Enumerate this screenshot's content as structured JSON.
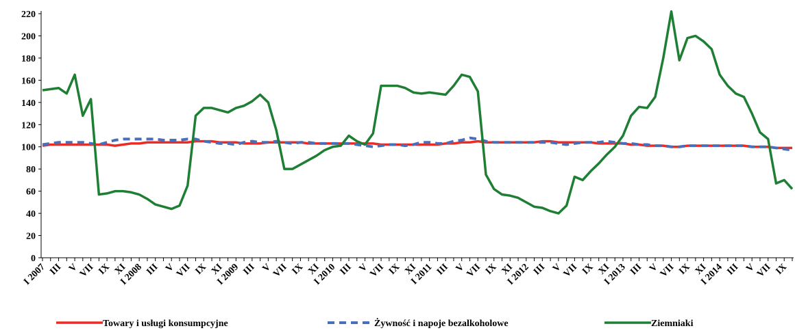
{
  "chart_data": {
    "type": "line",
    "categories": [
      "I 2007",
      null,
      "III",
      null,
      "V",
      null,
      "VII",
      null,
      "IX",
      null,
      "XI",
      null,
      "I 2008",
      null,
      "III",
      null,
      "V",
      null,
      "VII",
      null,
      "IX",
      null,
      "XI",
      null,
      "I 2009",
      null,
      "III",
      null,
      "V",
      null,
      "VII",
      null,
      "IX",
      null,
      "XI",
      null,
      "I 2010",
      null,
      "III",
      null,
      "V",
      null,
      "VII",
      null,
      "IX",
      null,
      "XI",
      null,
      "I 2011",
      null,
      "III",
      null,
      "V",
      null,
      "VII",
      null,
      "IX",
      null,
      "XI",
      null,
      "I 2012",
      null,
      "III",
      null,
      "V",
      null,
      "VII",
      null,
      "IX",
      null,
      "XI",
      null,
      "I 2013",
      null,
      "III",
      null,
      "V",
      null,
      "VII",
      null,
      "IX",
      null,
      "XI",
      null,
      "I 2014",
      null,
      "III",
      null,
      "V",
      null,
      "VII",
      null,
      "IX",
      null
    ],
    "series": [
      {
        "name": "Towary i usługi konsumpcyjne",
        "color": "#ee2a24",
        "dash": false,
        "values": [
          101,
          102,
          102,
          102,
          102,
          102,
          102,
          102,
          102,
          101,
          102,
          103,
          103,
          104,
          104,
          104,
          104,
          104,
          104,
          105,
          105,
          105,
          104,
          104,
          104,
          103,
          103,
          103,
          104,
          104,
          104,
          104,
          104,
          103,
          103,
          103,
          103,
          103,
          103,
          103,
          103,
          103,
          102,
          102,
          102,
          102,
          102,
          102,
          102,
          102,
          103,
          103,
          104,
          104,
          105,
          104,
          104,
          104,
          104,
          104,
          104,
          104,
          105,
          105,
          104,
          104,
          104,
          104,
          104,
          103,
          103,
          103,
          103,
          102,
          102,
          101,
          101,
          101,
          100,
          100,
          101,
          101,
          101,
          101,
          101,
          101,
          101,
          101,
          100,
          100,
          100,
          99,
          99,
          99
        ]
      },
      {
        "name": "Żywność i napoje bezalkoholowe",
        "color": "#4a6fba",
        "dash": true,
        "values": [
          102,
          103,
          104,
          104,
          104,
          104,
          103,
          102,
          104,
          106,
          107,
          107,
          107,
          107,
          107,
          106,
          106,
          106,
          107,
          107,
          105,
          104,
          103,
          103,
          102,
          104,
          105,
          104,
          104,
          105,
          104,
          103,
          104,
          104,
          103,
          103,
          103,
          103,
          103,
          102,
          101,
          100,
          101,
          102,
          102,
          101,
          102,
          104,
          104,
          103,
          103,
          105,
          106,
          108,
          107,
          105,
          104,
          104,
          104,
          104,
          104,
          104,
          104,
          104,
          103,
          102,
          103,
          104,
          104,
          104,
          105,
          104,
          103,
          103,
          102,
          102,
          101,
          101,
          100,
          100,
          101,
          101,
          101,
          101,
          101,
          101,
          101,
          101,
          100,
          100,
          100,
          99,
          98,
          97
        ]
      },
      {
        "name": "Ziemniaki",
        "color": "#1e7e34",
        "dash": false,
        "values": [
          151,
          152,
          153,
          148,
          165,
          128,
          143,
          57,
          58,
          60,
          60,
          59,
          57,
          53,
          48,
          46,
          44,
          47,
          65,
          128,
          135,
          135,
          133,
          131,
          135,
          137,
          141,
          147,
          140,
          115,
          80,
          80,
          84,
          88,
          92,
          97,
          100,
          101,
          110,
          105,
          102,
          112,
          155,
          155,
          155,
          153,
          149,
          148,
          149,
          148,
          147,
          155,
          165,
          163,
          150,
          75,
          62,
          57,
          56,
          54,
          50,
          46,
          45,
          42,
          40,
          47,
          73,
          70,
          78,
          85,
          93,
          100,
          110,
          128,
          136,
          135,
          145,
          180,
          222,
          178,
          198,
          200,
          195,
          188,
          165,
          155,
          148,
          145,
          130,
          113,
          107,
          67,
          70,
          62
        ]
      }
    ],
    "ylim": [
      0,
      220
    ],
    "yticks": [
      0,
      20,
      40,
      60,
      80,
      100,
      120,
      140,
      160,
      180,
      200,
      220
    ],
    "grid": false
  }
}
